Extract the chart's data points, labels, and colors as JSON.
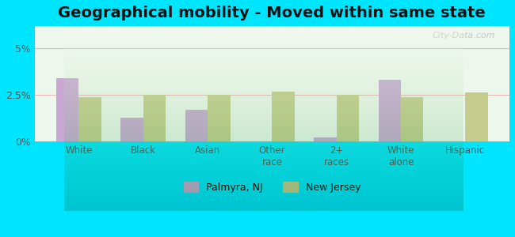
{
  "title": "Geographical mobility - Moved within same state",
  "categories": [
    "White",
    "Black",
    "Asian",
    "Other\nrace",
    "2+\nraces",
    "White\nalone",
    "Hispanic"
  ],
  "palmyra_values": [
    3.4,
    1.3,
    1.7,
    0.0,
    0.2,
    3.3,
    0.0
  ],
  "nj_values": [
    2.4,
    2.5,
    2.5,
    2.7,
    2.5,
    2.4,
    2.65
  ],
  "palmyra_color": "#c9a8d4",
  "nj_color": "#c5cc8e",
  "ylim": [
    0,
    6.2
  ],
  "ytick_labels": [
    "0%",
    "2.5%",
    "5%"
  ],
  "ytick_values": [
    0,
    2.5,
    5.0
  ],
  "background_outer": "#00e5ff",
  "background_chart": "#eef7ee",
  "grid_color": "#e8b8b8",
  "legend_palmyra": "Palmyra, NJ",
  "legend_nj": "New Jersey",
  "title_fontsize": 14,
  "bar_width": 0.35,
  "watermark": "City-Data.com"
}
